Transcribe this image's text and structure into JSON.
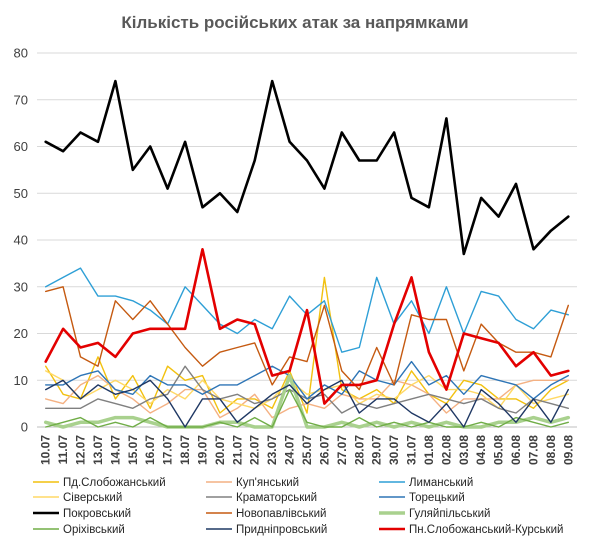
{
  "chart_data": {
    "type": "line",
    "title": "Кількість російських атак за напрямками",
    "xlabel": "",
    "ylabel": "",
    "ylim": [
      0,
      80
    ],
    "yticks": [
      0,
      10,
      20,
      30,
      40,
      50,
      60,
      70,
      80
    ],
    "grid": "horizontal",
    "legend_position": "bottom",
    "categories": [
      "10.07",
      "11.07",
      "12.07",
      "13.07",
      "14.07",
      "15.07",
      "16.07",
      "17.07",
      "18.07",
      "19.07",
      "20.07",
      "21.07",
      "22.07",
      "23.07",
      "24.07",
      "25.07",
      "26.07",
      "27.07",
      "28.07",
      "29.07",
      "30.07",
      "31.07",
      "01.08",
      "02.08",
      "03.08",
      "04.08",
      "05.08",
      "06.08",
      "07.08",
      "08.08",
      "09.08"
    ],
    "series": [
      {
        "name": "Пд.Слобожанський",
        "color": "#f2c10f",
        "width": 1.4,
        "values": [
          13,
          7,
          6,
          15,
          6,
          11,
          4,
          13,
          10,
          11,
          3,
          6,
          6,
          4,
          12,
          3,
          32,
          8,
          6,
          8,
          5,
          12,
          7,
          5,
          10,
          9,
          6,
          6,
          4,
          8,
          10
        ]
      },
      {
        "name": "Куп'янський",
        "color": "#f4b183",
        "width": 1.4,
        "values": [
          6,
          5,
          9,
          11,
          8,
          6,
          3,
          5,
          8,
          8,
          2,
          4,
          7,
          2,
          4,
          5,
          4,
          7,
          6,
          6,
          10,
          9,
          7,
          3,
          6,
          6,
          6,
          9,
          10,
          10,
          10
        ]
      },
      {
        "name": "Лиманський",
        "color": "#2e9fd6",
        "width": 1.4,
        "values": [
          30,
          32,
          34,
          28,
          28,
          27,
          25,
          22,
          30,
          26,
          22,
          20,
          23,
          21,
          28,
          24,
          27,
          16,
          17,
          32,
          22,
          27,
          20,
          30,
          20,
          29,
          28,
          23,
          21,
          25,
          24
        ]
      },
      {
        "name": "Сіверський",
        "color": "#ffd966",
        "width": 1.4,
        "values": [
          12,
          10,
          6,
          8,
          10,
          8,
          5,
          8,
          6,
          10,
          6,
          5,
          4,
          6,
          10,
          7,
          8,
          9,
          5,
          7,
          6,
          9,
          11,
          8,
          8,
          7,
          4,
          9,
          5,
          6,
          7
        ]
      },
      {
        "name": "Краматорський",
        "color": "#808080",
        "width": 1.4,
        "values": [
          4,
          4,
          4,
          6,
          5,
          4,
          6,
          7,
          13,
          8,
          6,
          7,
          5,
          6,
          8,
          6,
          7,
          3,
          5,
          4,
          5,
          6,
          7,
          6,
          5,
          6,
          4,
          3,
          6,
          5,
          4
        ]
      },
      {
        "name": "Торецький",
        "color": "#2e75b6",
        "width": 1.4,
        "values": [
          9,
          9,
          11,
          12,
          8,
          7,
          11,
          9,
          9,
          7,
          9,
          9,
          11,
          13,
          11,
          6,
          9,
          7,
          12,
          10,
          9,
          14,
          9,
          11,
          7,
          11,
          10,
          9,
          6,
          9,
          11
        ]
      },
      {
        "name": "Покровський",
        "color": "#000000",
        "width": 2.6,
        "values": [
          61,
          59,
          63,
          61,
          74,
          55,
          60,
          51,
          61,
          47,
          50,
          46,
          57,
          74,
          61,
          57,
          51,
          63,
          57,
          57,
          63,
          49,
          47,
          66,
          37,
          49,
          45,
          52,
          38,
          42,
          45
        ]
      },
      {
        "name": "Новопавлівський",
        "color": "#c55a11",
        "width": 1.4,
        "values": [
          29,
          30,
          15,
          13,
          27,
          23,
          27,
          22,
          17,
          13,
          16,
          17,
          18,
          9,
          15,
          14,
          26,
          12,
          8,
          17,
          9,
          24,
          23,
          23,
          12,
          22,
          18,
          16,
          16,
          15,
          26
        ]
      },
      {
        "name": "Гуляйпільський",
        "color": "#a9d18e",
        "width": 3.5,
        "values": [
          1,
          0,
          1,
          1,
          2,
          2,
          1,
          0,
          0,
          0,
          1,
          1,
          0,
          0,
          11,
          0,
          0,
          1,
          0,
          1,
          0,
          1,
          0,
          1,
          0,
          0,
          1,
          1,
          2,
          1,
          2
        ]
      },
      {
        "name": "Оріхівський",
        "color": "#70ad47",
        "width": 1.4,
        "values": [
          0,
          1,
          2,
          0,
          1,
          0,
          2,
          0,
          0,
          0,
          1,
          0,
          2,
          0,
          8,
          1,
          0,
          0,
          2,
          0,
          1,
          0,
          1,
          0,
          0,
          1,
          0,
          2,
          1,
          0,
          1
        ]
      },
      {
        "name": "Придніпровський",
        "color": "#1f3864",
        "width": 1.4,
        "values": [
          8,
          10,
          6,
          9,
          7,
          8,
          10,
          6,
          0,
          6,
          6,
          1,
          4,
          7,
          9,
          5,
          8,
          10,
          3,
          6,
          6,
          3,
          1,
          5,
          0,
          8,
          5,
          1,
          6,
          1,
          8
        ]
      },
      {
        "name": "Пн.Слобожанський-Курський",
        "color": "#e30000",
        "width": 2.6,
        "values": [
          14,
          21,
          17,
          18,
          15,
          20,
          21,
          21,
          21,
          38,
          21,
          23,
          22,
          11,
          12,
          25,
          5,
          9,
          9,
          10,
          22,
          32,
          16,
          8,
          20,
          19,
          18,
          13,
          16,
          11,
          12
        ]
      }
    ]
  }
}
